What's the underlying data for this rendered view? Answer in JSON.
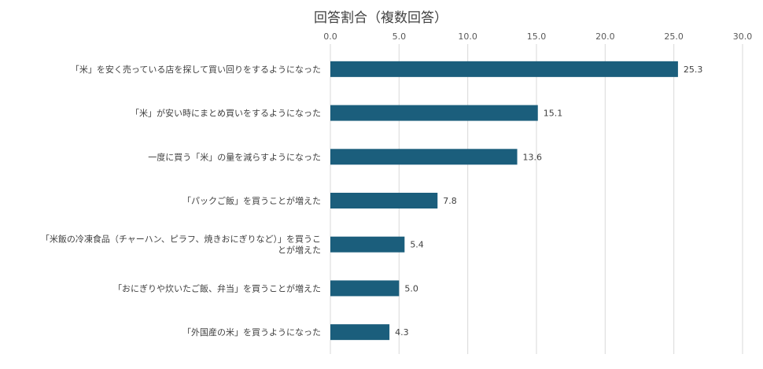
{
  "chart_data": {
    "type": "bar",
    "orientation": "horizontal",
    "title": "回答割合（複数回答）",
    "xlabel": "",
    "ylabel": "",
    "xlim": [
      0,
      30
    ],
    "ticks": [
      "0.0",
      "5.0",
      "10.0",
      "15.0",
      "20.0",
      "25.0",
      "30.0"
    ],
    "tick_values": [
      0,
      5,
      10,
      15,
      20,
      25,
      30
    ],
    "axis_position": "top",
    "grid": true,
    "legend": "none",
    "bar_color": "#1b5e7c",
    "categories": [
      [
        "「米」を安く売っている店を探して買い回りをするようになった"
      ],
      [
        "「米」が安い時にまとめ買いをするようになった"
      ],
      [
        "一度に買う「米」の量を減らすようになった"
      ],
      [
        "「パックご飯」を買うことが増えた"
      ],
      [
        "「米飯の冷凍食品（チャーハン、ピラフ、焼きおにぎりなど）」を買うこ",
        "とが増えた"
      ],
      [
        "「おにぎりや炊いたご飯、弁当」を買うことが増えた"
      ],
      [
        "「外国産の米」を買うようになった"
      ]
    ],
    "values": [
      25.3,
      15.1,
      13.6,
      7.8,
      5.4,
      5.0,
      4.3
    ],
    "value_labels": [
      "25.3",
      "15.1",
      "13.6",
      "7.8",
      "5.4",
      "5.0",
      "4.3"
    ]
  }
}
